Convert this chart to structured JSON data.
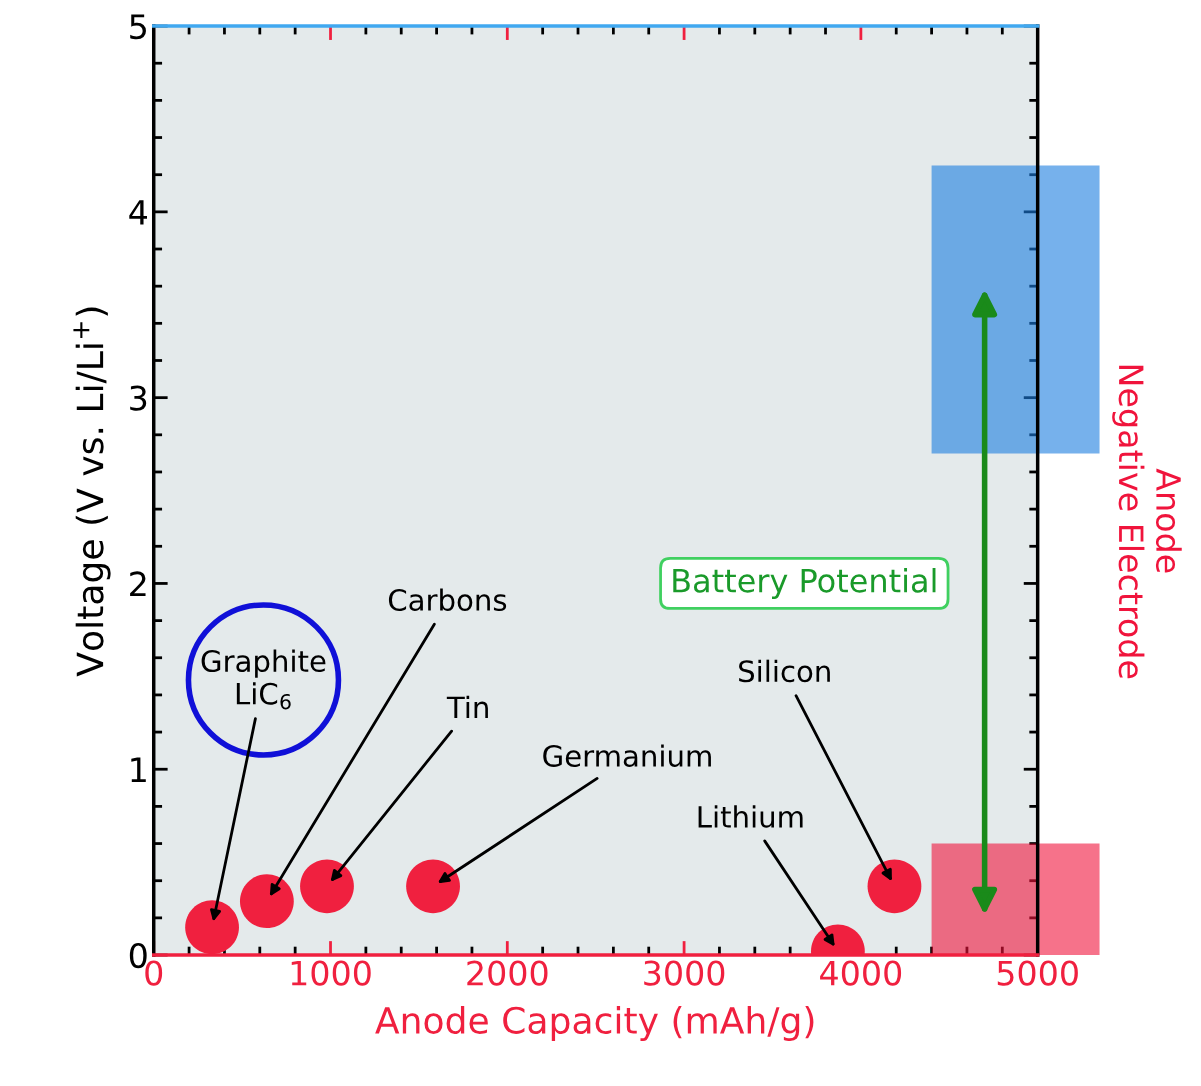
{
  "chart_data": {
    "type": "scatter",
    "xlabel": "Anode Capacity (mAh/g)",
    "ylabel": "Voltage (V vs. Li/Li$^{+}$)",
    "x": [
      330,
      640,
      980,
      1580,
      3870,
      4190
    ],
    "series": [
      {
        "color": "#f0203f",
        "values": [
          0.15,
          0.29,
          0.37,
          0.37,
          0.02,
          0.37
        ]
      }
    ],
    "marker": "circle",
    "xlim": [
      0,
      5000
    ],
    "xticks": [
      0,
      1000,
      2000,
      3000,
      4000,
      5000
    ],
    "ylim": [
      0,
      5
    ],
    "yticks": [
      0,
      1,
      2,
      3,
      4,
      5
    ],
    "grid": false,
    "bands": [
      {
        "axis": "y",
        "from": 2.7,
        "to": 4.25,
        "color": "#1a7de0"
      },
      {
        "axis": "y",
        "from": 0,
        "to": 0.6,
        "color": "#f0143c"
      }
    ],
    "annotations": [
      {
        "text": "Graphite\nLiC$_{6}$",
        "x": 330,
        "y": 0.15
      },
      {
        "text": "Carbons",
        "x": 640,
        "y": 0.29
      },
      {
        "text": "Tin",
        "x": 980,
        "y": 0.37
      },
      {
        "text": "Germanium",
        "x": 1580,
        "y": 0.37
      },
      {
        "text": "Lithium",
        "x": 3870,
        "y": 0.02
      },
      {
        "text": "Silicon",
        "x": 4190,
        "y": 0.37
      },
      "Battery Potential",
      "Anode\nNegative Electrode"
    ]
  }
}
